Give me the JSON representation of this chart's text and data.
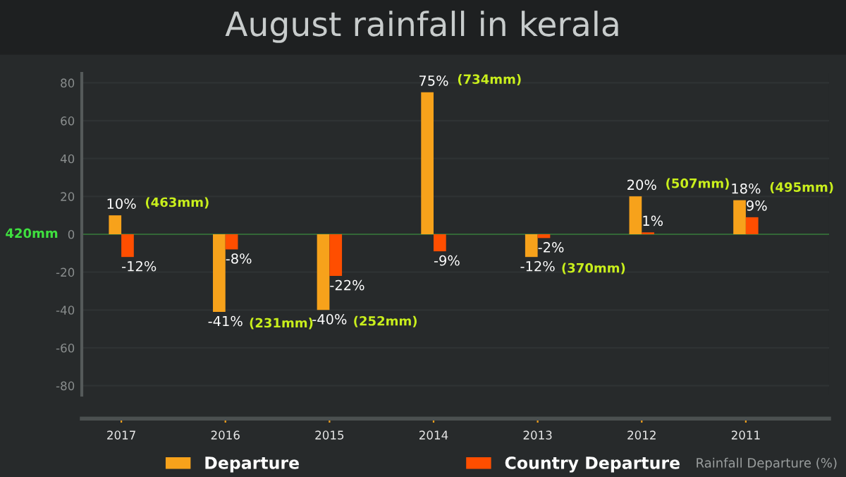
{
  "chart_data": {
    "type": "bar",
    "title": "August rainfall in kerala",
    "ref_lines": [
      {
        "axis": "y",
        "value": 0,
        "label": "420mm",
        "color": "#3fe03f"
      }
    ],
    "categories": [
      "2017",
      "2016",
      "2015",
      "2014",
      "2013",
      "2012",
      "2011"
    ],
    "series": [
      {
        "name": "Departure",
        "color": "#f7a21b",
        "values": [
          10,
          -41,
          -40,
          75,
          -12,
          20,
          18
        ],
        "value_labels": [
          "10%",
          "-41%",
          "-40%",
          "75%",
          "-12%",
          "20%",
          "18%"
        ]
      },
      {
        "name": "Country Departure",
        "color": "#ff4e00",
        "values": [
          -12,
          -8,
          -22,
          -9,
          -2,
          1,
          9
        ],
        "value_labels": [
          "-12%",
          "-8%",
          "-22%",
          "-9%",
          "-2%",
          "1%",
          "9%"
        ]
      }
    ],
    "ylim": [
      -85,
      85
    ],
    "yticks": [
      -80,
      -60,
      -40,
      -20,
      0,
      20,
      40,
      60,
      80
    ],
    "grid": "y",
    "legend": "bottom",
    "annotations": [
      "Rainfall Departure (%)",
      {
        "text": "(463mm)",
        "x": "2017",
        "y": 10
      },
      {
        "text": "(231mm)",
        "x": "2016",
        "y": -41
      },
      {
        "text": "(252mm)",
        "x": "2015",
        "y": -40
      },
      {
        "text": "(734mm)",
        "x": "2014",
        "y": 75
      },
      {
        "text": "(370mm)",
        "x": "2013",
        "y": -12
      },
      {
        "text": "(507mm)",
        "x": "2012",
        "y": 20
      },
      {
        "text": "(495mm)",
        "x": "2011",
        "y": 18
      }
    ]
  }
}
